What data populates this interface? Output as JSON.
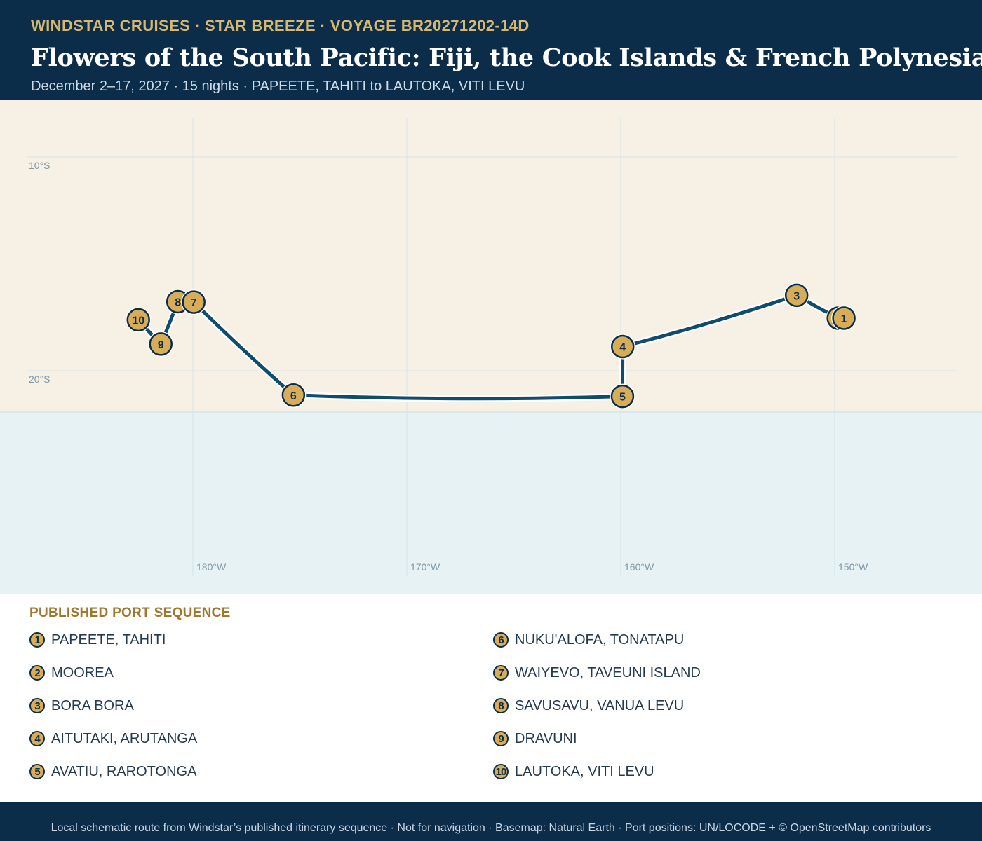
{
  "header": {
    "eyebrow": "WINDSTAR CRUISES · STAR BREEZE · VOYAGE BR20271202-14D",
    "title": "Flowers of the South Pacific: Fiji, the Cook Islands & French Polynesia",
    "subtitle": "December 2–17, 2027 · 15 nights · PAPEETE, TAHITI to LAUTOKA, VITI LEVU"
  },
  "map": {
    "colors": {
      "land": "#f7f0e4",
      "sea": "#e6f2f4",
      "route": "#0f4c6e",
      "marker_fill": "#d8ad5a",
      "marker_stroke": "#0b2d4a"
    },
    "lat_labels": [
      {
        "lat": -10,
        "label": "10°S"
      },
      {
        "lat": -20,
        "label": "20°S"
      }
    ],
    "lon_labels": [
      {
        "lon": -180,
        "label": "180°W"
      },
      {
        "lon": -170,
        "label": "170°W"
      },
      {
        "lon": -160,
        "label": "160°W"
      },
      {
        "lon": -150,
        "label": "150°W"
      }
    ],
    "ports": [
      {
        "n": "1",
        "name": "PAPEETE, TAHITI",
        "lon": -149.57,
        "lat": -17.54
      },
      {
        "n": "2",
        "name": "MOOREA",
        "lon": -149.83,
        "lat": -17.54
      },
      {
        "n": "3",
        "name": "BORA BORA",
        "lon": -151.78,
        "lat": -16.47
      },
      {
        "n": "4",
        "name": "AITUTAKI, ARUTANGA",
        "lon": -159.91,
        "lat": -18.87
      },
      {
        "n": "5",
        "name": "AVATIU, RAROTONGA",
        "lon": -159.92,
        "lat": -21.2
      },
      {
        "n": "6",
        "name": "NUKU'ALOFA, TONATAPU",
        "lon": -175.3,
        "lat": -21.14
      },
      {
        "n": "7",
        "name": "WAIYEVO, TAVEUNI ISLAND",
        "lon": -179.96,
        "lat": -16.79
      },
      {
        "n": "8",
        "name": "SAVUSAVU, VANUA LEVU",
        "lon": -180.7,
        "lat": -16.77
      },
      {
        "n": "9",
        "name": "DRAVUNI",
        "lon": -181.5,
        "lat": -18.75
      },
      {
        "n": "10",
        "name": "LAUTOKA, VITI LEVU",
        "lon": -182.55,
        "lat": -17.62
      }
    ]
  },
  "legend": {
    "heading": "PUBLISHED PORT SEQUENCE"
  },
  "footer": {
    "text": "Local schematic route from Windstar’s published itinerary sequence · Not for navigation · Basemap: Natural Earth · Port positions: UN/LOCODE + © OpenStreetMap contributors"
  }
}
